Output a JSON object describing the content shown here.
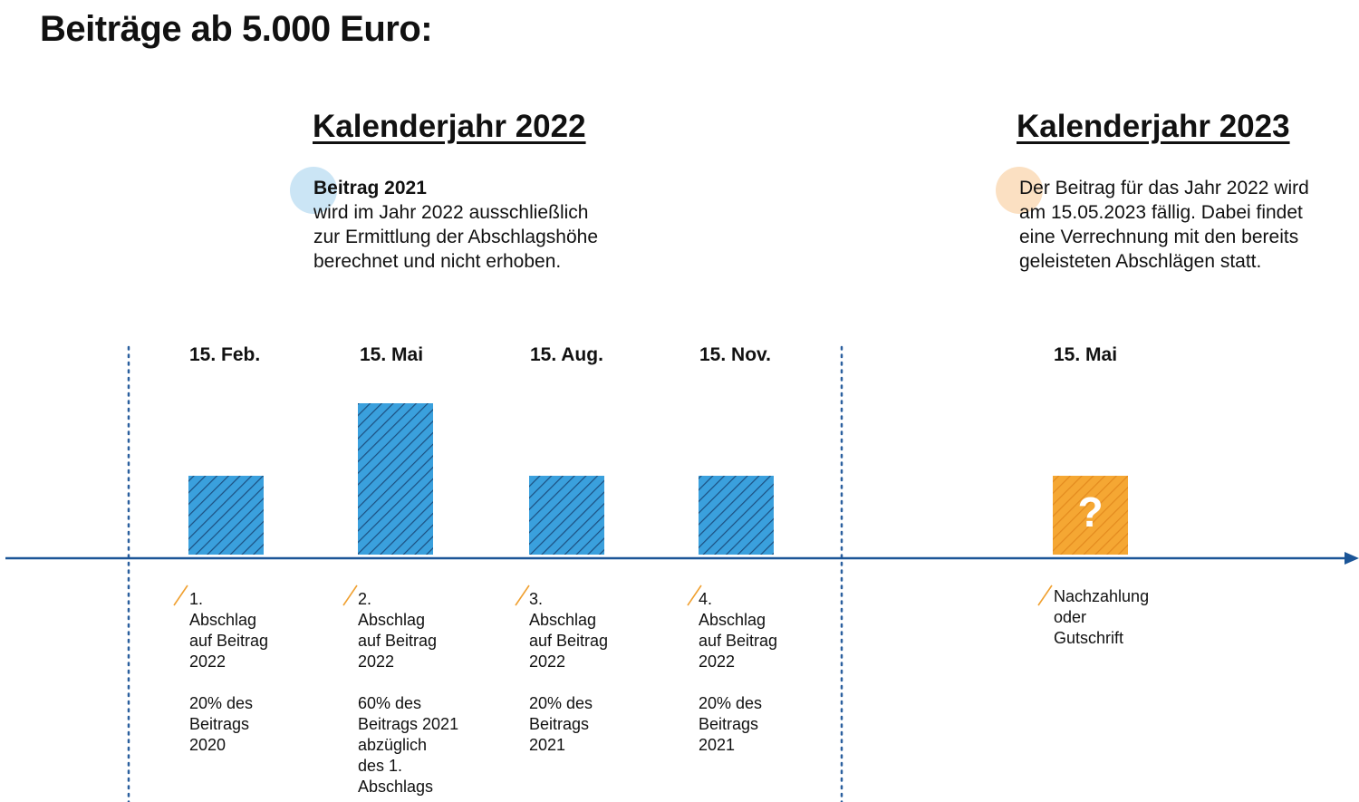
{
  "title": "Beiträge ab 5.000 Euro:",
  "colors": {
    "blue_bar": "#3aa0dd",
    "blue_hatch": "#1c4f80",
    "orange_bar": "#f5a733",
    "orange_hatch": "#e38a1e",
    "axis": "#1b5597",
    "divider": "#2a5f9e",
    "blue_circle": "#cbe5f5",
    "orange_circle": "#fbe0c2",
    "slash": "#f0a030"
  },
  "years": [
    {
      "heading": "Kalenderjahr 2022",
      "note_title": "Beitrag 2021",
      "note_lines": [
        "wird im Jahr 2022 ausschließlich",
        "zur Ermittlung der Abschlagshöhe",
        "berechnet und nicht erhoben."
      ]
    },
    {
      "heading": "Kalenderjahr 2023",
      "note_title": "",
      "note_lines": [
        "Der Beitrag für das Jahr 2022 wird",
        "am 15.05.2023 fällig. Dabei findet",
        "eine Verrechnung mit den bereits",
        "geleisteten Abschlägen statt."
      ]
    }
  ],
  "payments": [
    {
      "date": "15. Feb.",
      "label_lines": [
        "1.",
        "Abschlag",
        "auf Beitrag",
        "2022"
      ],
      "detail_lines": [
        "20% des",
        "Beitrags",
        "2020"
      ]
    },
    {
      "date": "15. Mai",
      "label_lines": [
        "2.",
        "Abschlag",
        "auf Beitrag",
        "2022"
      ],
      "detail_lines": [
        "60% des",
        "Beitrags 2021",
        "abzüglich",
        "des 1.",
        "Abschlags"
      ]
    },
    {
      "date": "15. Aug.",
      "label_lines": [
        "3.",
        "Abschlag",
        "auf Beitrag",
        "2022"
      ],
      "detail_lines": [
        "20% des",
        "Beitrags",
        "2021"
      ]
    },
    {
      "date": "15. Nov.",
      "label_lines": [
        "4.",
        "Abschlag",
        "auf Beitrag",
        "2022"
      ],
      "detail_lines": [
        "20% des",
        "Beitrags",
        "2021"
      ]
    },
    {
      "date": "15. Mai",
      "symbol": "?",
      "label_lines": [
        "Nachzahlung",
        "oder",
        "Gutschrift"
      ],
      "detail_lines": []
    }
  ]
}
